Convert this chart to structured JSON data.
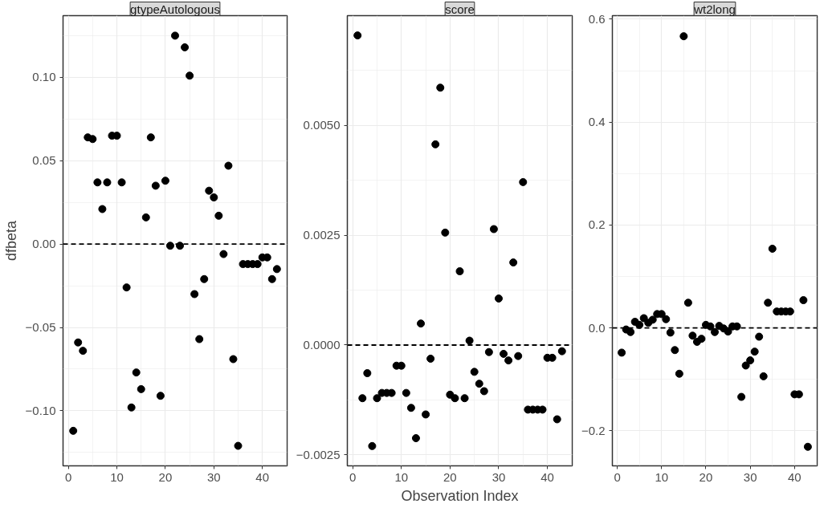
{
  "chart_data": [
    {
      "type": "scatter",
      "title": "gtypeAutologous",
      "ylabel": "dfbeta",
      "marker": "circle",
      "grid": true,
      "color": "#000000",
      "x": [
        1,
        2,
        3,
        4,
        5,
        6,
        7,
        8,
        9,
        10,
        11,
        12,
        13,
        14,
        15,
        16,
        17,
        18,
        19,
        20,
        21,
        22,
        23,
        24,
        25,
        26,
        27,
        28,
        29,
        30,
        31,
        32,
        33,
        34,
        35,
        36,
        37,
        38,
        39,
        40,
        41,
        42,
        43
      ],
      "values": [
        -0.112,
        -0.059,
        -0.064,
        0.064,
        0.063,
        0.037,
        0.021,
        0.037,
        0.065,
        0.065,
        0.037,
        -0.026,
        -0.098,
        -0.077,
        -0.087,
        0.016,
        0.064,
        0.035,
        -0.091,
        0.038,
        -0.001,
        0.125,
        -0.001,
        0.118,
        0.101,
        -0.03,
        -0.057,
        -0.021,
        0.032,
        0.028,
        0.017,
        -0.006,
        0.047,
        -0.069,
        -0.121,
        -0.012,
        -0.012,
        -0.012,
        -0.012,
        -0.008,
        -0.008,
        -0.021,
        -0.015
      ],
      "xlim": [
        -1.1,
        45.1
      ],
      "xticks": [
        0,
        10,
        20,
        30,
        40
      ],
      "ylim": [
        -0.133,
        0.137
      ],
      "yticks": [
        {
          "value": -0.1,
          "label": "−0.10"
        },
        {
          "value": -0.05,
          "label": "−0.05"
        },
        {
          "value": 0,
          "label": "0.00"
        },
        {
          "value": 0.05,
          "label": "0.05"
        },
        {
          "value": 0.1,
          "label": "0.10"
        }
      ],
      "ref_lines": [
        {
          "axis": "y",
          "value": 0,
          "label": null,
          "color": "#000000",
          "line_style": "dashed"
        }
      ]
    },
    {
      "type": "scatter",
      "title": "score",
      "xlabel": "Observation Index",
      "marker": "circle",
      "grid": true,
      "color": "#000000",
      "x": [
        1,
        2,
        3,
        4,
        5,
        6,
        7,
        8,
        9,
        10,
        11,
        12,
        13,
        14,
        15,
        16,
        17,
        18,
        19,
        20,
        21,
        22,
        23,
        24,
        25,
        26,
        27,
        28,
        29,
        30,
        31,
        32,
        33,
        34,
        35,
        36,
        37,
        38,
        39,
        40,
        41,
        42,
        43
      ],
      "values": [
        0.00705,
        -0.00121,
        -0.00064,
        -0.0023,
        -0.00121,
        -0.00109,
        -0.00109,
        -0.00109,
        -0.00047,
        -0.00047,
        -0.00109,
        -0.00143,
        -0.00212,
        0.00049,
        -0.00158,
        -0.00031,
        0.00457,
        0.00586,
        0.00256,
        -0.00113,
        -0.00121,
        0.00168,
        -0.00121,
        0.0001,
        -0.00061,
        -0.00088,
        -0.00105,
        -0.00016,
        0.00264,
        0.00106,
        -0.0002,
        -0.00035,
        0.00188,
        -0.00025,
        0.00371,
        -0.00147,
        -0.00147,
        -0.00147,
        -0.00147,
        -0.00029,
        -0.00029,
        -0.00169,
        -0.00014
      ],
      "xlim": [
        -1.1,
        45.1
      ],
      "xticks": [
        0,
        10,
        20,
        30,
        40
      ],
      "ylim": [
        -0.00275,
        0.0075
      ],
      "yticks": [
        {
          "value": -0.0025,
          "label": "−0.0025"
        },
        {
          "value": 0,
          "label": "0.0000"
        },
        {
          "value": 0.0025,
          "label": "0.0025"
        },
        {
          "value": 0.005,
          "label": "0.0050"
        }
      ],
      "ref_lines": [
        {
          "axis": "y",
          "value": 0,
          "label": null,
          "color": "#000000",
          "line_style": "dashed"
        }
      ]
    },
    {
      "type": "scatter",
      "title": "wt2long",
      "marker": "circle",
      "grid": true,
      "color": "#000000",
      "x": [
        1,
        2,
        3,
        4,
        5,
        6,
        7,
        8,
        9,
        10,
        11,
        12,
        13,
        14,
        15,
        16,
        17,
        18,
        19,
        20,
        21,
        22,
        23,
        24,
        25,
        26,
        27,
        28,
        29,
        30,
        31,
        32,
        33,
        34,
        35,
        36,
        37,
        38,
        39,
        40,
        41,
        42,
        43
      ],
      "values": [
        -0.048,
        -0.003,
        -0.008,
        0.012,
        0.006,
        0.019,
        0.01,
        0.016,
        0.027,
        0.027,
        0.017,
        -0.009,
        -0.043,
        -0.089,
        0.567,
        0.049,
        -0.015,
        -0.027,
        -0.021,
        0.006,
        0.003,
        -0.008,
        0.004,
        -0.001,
        -0.007,
        0.003,
        0.003,
        -0.134,
        -0.073,
        -0.063,
        -0.046,
        -0.017,
        -0.094,
        0.049,
        0.154,
        0.032,
        0.032,
        0.032,
        0.032,
        -0.129,
        -0.129,
        0.054,
        -0.231
      ],
      "xlim": [
        -1.1,
        45.1
      ],
      "xticks": [
        0,
        10,
        20,
        30,
        40
      ],
      "ylim": [
        -0.268,
        0.607
      ],
      "yticks": [
        {
          "value": -0.2,
          "label": "−0.2"
        },
        {
          "value": 0,
          "label": "0.0"
        },
        {
          "value": 0.2,
          "label": "0.2"
        },
        {
          "value": 0.4,
          "label": "0.4"
        },
        {
          "value": 0.6,
          "label": "0.6"
        }
      ],
      "ref_lines": [
        {
          "axis": "y",
          "value": 0,
          "label": null,
          "color": "#000000",
          "line_style": "dashed"
        }
      ]
    }
  ]
}
